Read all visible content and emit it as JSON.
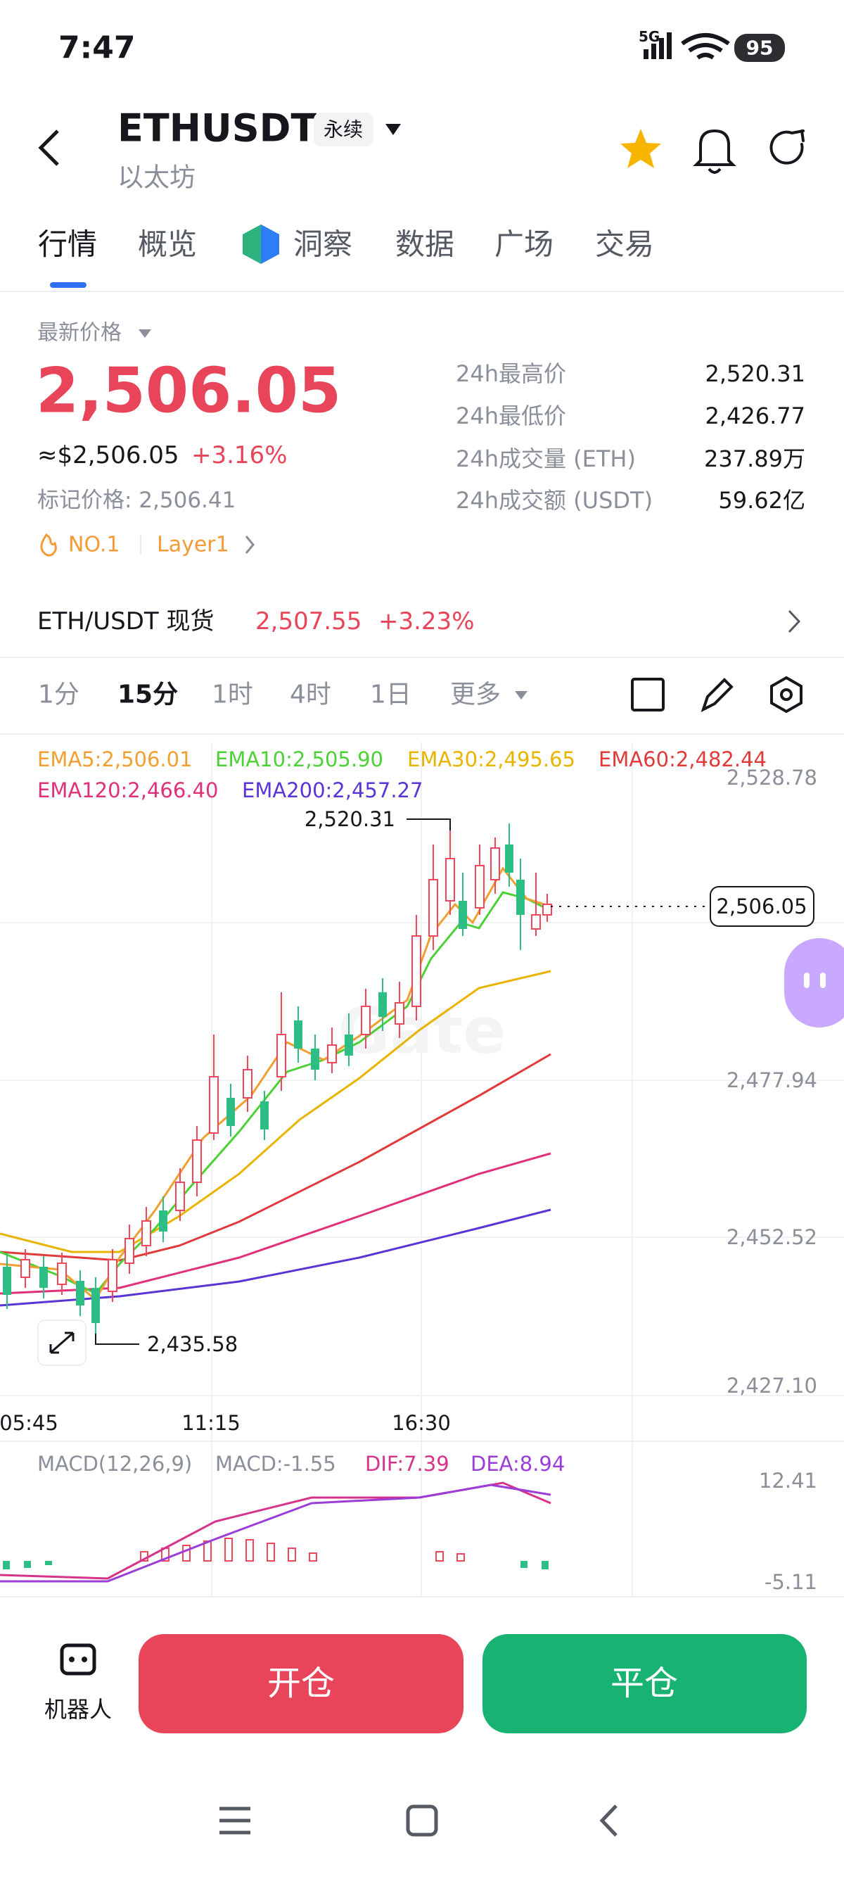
{
  "status_bar": {
    "time": "7:47",
    "network": "5G",
    "battery": "95"
  },
  "header": {
    "symbol": "ETHUSDT",
    "badge": "永续",
    "name": "以太坊"
  },
  "tabs": [
    "行情",
    "概览",
    "洞察",
    "数据",
    "广场",
    "交易"
  ],
  "price": {
    "label": "最新价格",
    "last": "2,506.05",
    "usd": "≈$2,506.05",
    "change": "+3.16%",
    "mark": "标记价格: 2,506.41",
    "tags": [
      "NO.1",
      "Layer1"
    ]
  },
  "stats": [
    {
      "label": "24h最高价",
      "value": "2,520.31"
    },
    {
      "label": "24h最低价",
      "value": "2,426.77"
    },
    {
      "label": "24h成交量 (ETH)",
      "value": "237.89万"
    },
    {
      "label": "24h成交额 (USDT)",
      "value": "59.62亿"
    }
  ],
  "spot": {
    "pair": "ETH/USDT 现货",
    "price": "2,507.55",
    "change": "+3.23%"
  },
  "intervals": [
    "1分",
    "15分",
    "1时",
    "4时",
    "1日",
    "更多"
  ],
  "chart": {
    "ema": [
      "EMA5:2,506.01",
      "EMA10:2,505.90",
      "EMA30:2,495.65",
      "EMA60:2,482.44",
      "EMA120:2,466.40",
      "EMA200:2,457.27"
    ],
    "y_labels": [
      "2,528.78",
      "2,477.94",
      "2,452.52",
      "2,427.10"
    ],
    "current": "2,506.05",
    "high": "2,520.31",
    "low": "2,435.58",
    "x_labels": [
      "05:45",
      "11:15",
      "16:30"
    ],
    "watermark": "Gate",
    "macd": {
      "labels": [
        "MACD(12,26,9)",
        "MACD:-1.55",
        "DIF:7.39",
        "DEA:8.94"
      ],
      "y_labels": [
        "12.41",
        "-5.11"
      ]
    }
  },
  "actions": {
    "robot": "机器人",
    "open": "开仓",
    "close": "平仓"
  }
}
